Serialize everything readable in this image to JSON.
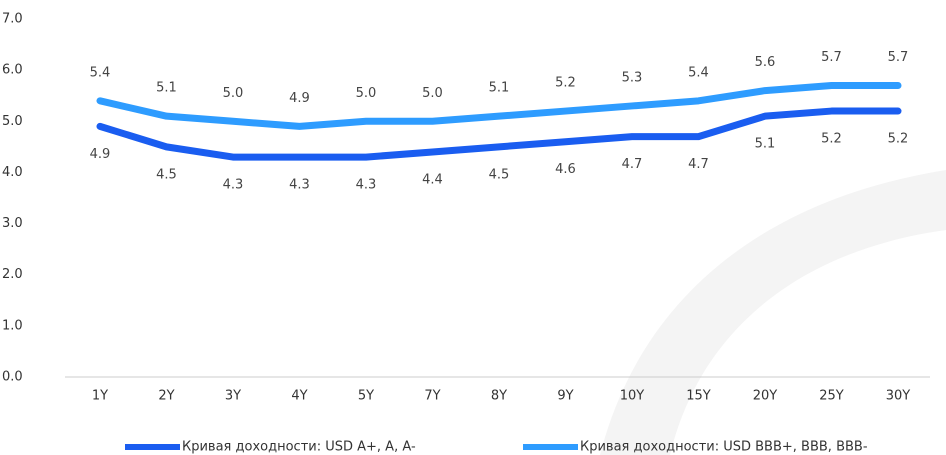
{
  "chart_data": {
    "type": "line",
    "categories": [
      "1Y",
      "2Y",
      "3Y",
      "4Y",
      "5Y",
      "7Y",
      "8Y",
      "9Y",
      "10Y",
      "15Y",
      "20Y",
      "25Y",
      "30Y"
    ],
    "series": [
      {
        "name": "Кривая доходности: USD A+, A, A-",
        "color": "#1a5df0",
        "values": [
          4.9,
          4.5,
          4.3,
          4.3,
          4.3,
          4.4,
          4.5,
          4.6,
          4.7,
          4.7,
          5.1,
          5.2,
          5.2
        ],
        "value_labels": [
          "4.9",
          "4.5",
          "4.3",
          "4.3",
          "4.3",
          "4.4",
          "4.5",
          "4.6",
          "4.7",
          "4.7",
          "5.1",
          "5.2",
          "5.2"
        ]
      },
      {
        "name": "Кривая доходности: USD BBB+, BBB, BBB-",
        "color": "#2e9cff",
        "values": [
          5.4,
          5.1,
          5.0,
          4.9,
          5.0,
          5.0,
          5.1,
          5.2,
          5.3,
          5.4,
          5.6,
          5.7,
          5.7
        ],
        "value_labels": [
          "5.4",
          "5.1",
          "5.0",
          "4.9",
          "5.0",
          "5.0",
          "5.1",
          "5.2",
          "5.3",
          "5.4",
          "5.6",
          "5.7",
          "5.7"
        ]
      }
    ],
    "ylim": [
      0,
      7
    ],
    "yticks": [
      {
        "value": 0,
        "label": "0.0"
      },
      {
        "value": 1,
        "label": "1.0"
      },
      {
        "value": 2,
        "label": "2.0"
      },
      {
        "value": 3,
        "label": "3.0"
      },
      {
        "value": 4,
        "label": "4.0"
      },
      {
        "value": 5,
        "label": "5.0"
      },
      {
        "value": 6,
        "label": "6.0"
      },
      {
        "value": 7,
        "label": "7.0"
      }
    ],
    "grid": false,
    "legend": "bottom"
  }
}
